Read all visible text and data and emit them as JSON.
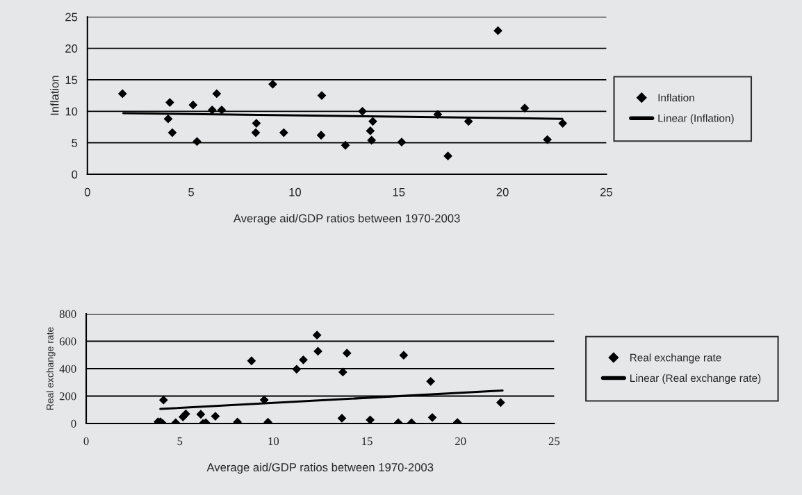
{
  "chart_data": [
    {
      "type": "scatter",
      "xlabel": "Average aid/GDP ratios between 1970-2003",
      "ylabel": "Inflation",
      "xlim": [
        0,
        25
      ],
      "xticks": [
        0,
        5,
        10,
        15,
        20,
        25
      ],
      "ylim": [
        0,
        25
      ],
      "yticks": [
        0,
        5,
        10,
        15,
        20,
        25
      ],
      "grid": "y",
      "legend": "right",
      "series": [
        {
          "name": "Inflation",
          "marker": "diamond",
          "color": "#000000",
          "x": [
            1.69,
            3.97,
            3.89,
            4.09,
            5.09,
            5.28,
            6.01,
            6.23,
            6.47,
            8.14,
            8.11,
            8.93,
            9.46,
            11.29,
            11.26,
            12.43,
            13.25,
            13.75,
            13.63,
            13.69,
            15.14,
            16.88,
            17.37,
            18.36,
            19.78,
            21.07,
            22.16,
            22.9
          ],
          "values": [
            12.8,
            11.4,
            8.8,
            6.6,
            11.0,
            5.2,
            10.2,
            12.8,
            10.2,
            8.1,
            6.6,
            14.3,
            6.6,
            12.5,
            6.2,
            4.6,
            10.0,
            8.4,
            6.9,
            5.4,
            5.1,
            9.5,
            2.9,
            8.4,
            22.8,
            10.5,
            5.5,
            8.1
          ]
        },
        {
          "name": "Linear (Inflation)",
          "type": "line",
          "color": "#000000",
          "x": [
            1.73,
            22.88
          ],
          "values": [
            9.7,
            8.8
          ]
        }
      ]
    },
    {
      "type": "scatter",
      "xlabel": "Average aid/GDP ratios between 1970-2003",
      "ylabel": "Real exchange rate",
      "xlim": [
        0,
        25
      ],
      "xticks": [
        0,
        5,
        10,
        15,
        20,
        25
      ],
      "ylim": [
        0,
        800
      ],
      "yticks": [
        0,
        200,
        400,
        600,
        800
      ],
      "grid": "y",
      "legend": "right",
      "series": [
        {
          "name": "Real exchange rate",
          "marker": "diamond",
          "color": "#000000",
          "x": [
            3.84,
            3.96,
            4.08,
            4.13,
            4.78,
            5.17,
            5.32,
            6.12,
            6.24,
            6.39,
            6.9,
            8.08,
            8.83,
            9.51,
            9.71,
            11.24,
            11.6,
            12.33,
            12.38,
            13.71,
            13.66,
            13.93,
            15.17,
            16.67,
            16.96,
            17.38,
            18.4,
            18.49,
            19.83,
            22.14
          ],
          "values": [
            12,
            12,
            0,
            171,
            5,
            48,
            70,
            67,
            0,
            5,
            53,
            10,
            457,
            172,
            9,
            396,
            464,
            645,
            527,
            375,
            38,
            513,
            26,
            5,
            498,
            5,
            307,
            44,
            7,
            153
          ]
        },
        {
          "name": "Linear (Real exchange rate)",
          "type": "line",
          "color": "#000000",
          "x": [
            3.96,
            22.24
          ],
          "values": [
            106,
            240
          ]
        }
      ]
    }
  ]
}
